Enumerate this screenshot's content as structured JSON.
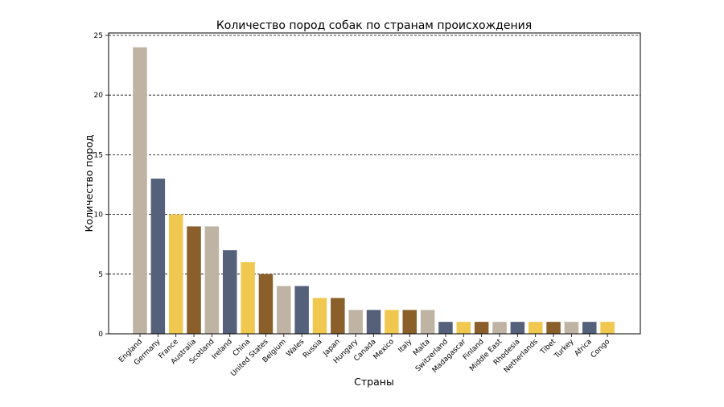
{
  "chart_data": {
    "type": "bar",
    "title": "Количество пород собак по странам происхождения",
    "xlabel": "Страны",
    "ylabel": "Количество пород",
    "ylim": [
      0,
      25
    ],
    "yticks": [
      0,
      5,
      10,
      15,
      20,
      25
    ],
    "grid": "horizontal-dashed",
    "categories": [
      "England",
      "Germany",
      "France",
      "Australia",
      "Scotland",
      "Ireland",
      "China",
      "United States",
      "Belgium",
      "Wales",
      "Russia",
      "Japan",
      "Hungary",
      "Canada",
      "Mexico",
      "Italy",
      "Malta",
      "Switzerland",
      "Madagascar",
      "Finland",
      "Middle East",
      "Rhodesia",
      "Netherlands",
      "Tibet",
      "Turkey",
      "Africa",
      "Congo"
    ],
    "values": [
      24,
      13,
      10,
      9,
      9,
      7,
      6,
      5,
      4,
      4,
      3,
      3,
      2,
      2,
      2,
      2,
      2,
      1,
      1,
      1,
      1,
      1,
      1,
      1,
      1,
      1,
      1
    ],
    "colors": [
      "#bfb4a4",
      "#55617a",
      "#f0c850",
      "#8b5f2a"
    ]
  }
}
